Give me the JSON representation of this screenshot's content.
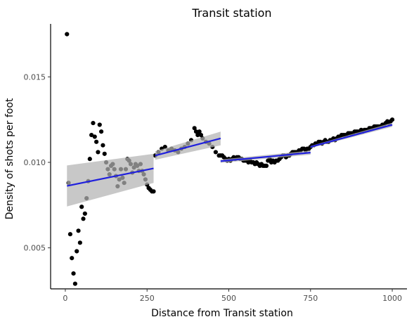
{
  "chart_data": {
    "type": "scatter",
    "title": "Transit station",
    "xlabel": "Distance from Transit station",
    "ylabel": "Density of shots per foot",
    "xlim": [
      -45,
      1045
    ],
    "ylim": [
      0.0026,
      0.0181
    ],
    "xticks": [
      0,
      250,
      500,
      750,
      1000
    ],
    "xtick_labels": [
      "0",
      "250",
      "500",
      "750",
      "1000"
    ],
    "yticks": [
      0.005,
      0.01,
      0.015
    ],
    "ytick_labels": [
      "0.005",
      "0.010",
      "0.015"
    ],
    "grid": false,
    "legend": "none",
    "colors": {
      "points": "#000000",
      "fit_line": "#1f1fdd",
      "confidence_band": "#b3b3b3"
    },
    "points": [
      [
        5,
        0.0175
      ],
      [
        10,
        0.0088
      ],
      [
        15,
        0.0058
      ],
      [
        20,
        0.0044
      ],
      [
        25,
        0.0035
      ],
      [
        30,
        0.0029
      ],
      [
        35,
        0.0048
      ],
      [
        40,
        0.006
      ],
      [
        45,
        0.0053
      ],
      [
        50,
        0.0074
      ],
      [
        55,
        0.0067
      ],
      [
        60,
        0.007
      ],
      [
        65,
        0.0079
      ],
      [
        70,
        0.0089
      ],
      [
        75,
        0.0102
      ],
      [
        80,
        0.0116
      ],
      [
        85,
        0.0123
      ],
      [
        90,
        0.0115
      ],
      [
        95,
        0.0112
      ],
      [
        100,
        0.0106
      ],
      [
        105,
        0.0122
      ],
      [
        110,
        0.0118
      ],
      [
        115,
        0.011
      ],
      [
        120,
        0.0105
      ],
      [
        125,
        0.01
      ],
      [
        130,
        0.0096
      ],
      [
        135,
        0.0093
      ],
      [
        140,
        0.0098
      ],
      [
        145,
        0.0099
      ],
      [
        150,
        0.0096
      ],
      [
        155,
        0.0092
      ],
      [
        160,
        0.0086
      ],
      [
        165,
        0.009
      ],
      [
        170,
        0.0096
      ],
      [
        175,
        0.0091
      ],
      [
        180,
        0.0088
      ],
      [
        185,
        0.0096
      ],
      [
        190,
        0.0102
      ],
      [
        195,
        0.0101
      ],
      [
        200,
        0.0099
      ],
      [
        205,
        0.0094
      ],
      [
        210,
        0.0097
      ],
      [
        215,
        0.0099
      ],
      [
        220,
        0.0098
      ],
      [
        225,
        0.0095
      ],
      [
        230,
        0.0099
      ],
      [
        235,
        0.0095
      ],
      [
        240,
        0.0093
      ],
      [
        245,
        0.009
      ],
      [
        250,
        0.0087
      ],
      [
        255,
        0.0085
      ],
      [
        260,
        0.0084
      ],
      [
        265,
        0.0083
      ],
      [
        270,
        0.0083
      ],
      [
        275,
        0.0104
      ],
      [
        285,
        0.0106
      ],
      [
        295,
        0.0108
      ],
      [
        305,
        0.0109
      ],
      [
        315,
        0.0107
      ],
      [
        325,
        0.0108
      ],
      [
        335,
        0.0107
      ],
      [
        345,
        0.0106
      ],
      [
        355,
        0.0108
      ],
      [
        365,
        0.0109
      ],
      [
        375,
        0.0111
      ],
      [
        385,
        0.0113
      ],
      [
        395,
        0.012
      ],
      [
        400,
        0.0118
      ],
      [
        405,
        0.0116
      ],
      [
        410,
        0.0118
      ],
      [
        415,
        0.0116
      ],
      [
        420,
        0.0114
      ],
      [
        430,
        0.0112
      ],
      [
        440,
        0.0111
      ],
      [
        450,
        0.0109
      ],
      [
        460,
        0.0106
      ],
      [
        470,
        0.0104
      ],
      [
        475,
        0.0104
      ],
      [
        480,
        0.0104
      ],
      [
        485,
        0.0103
      ],
      [
        490,
        0.0102
      ],
      [
        495,
        0.0101
      ],
      [
        500,
        0.0102
      ],
      [
        505,
        0.0101
      ],
      [
        510,
        0.0102
      ],
      [
        515,
        0.0103
      ],
      [
        520,
        0.0102
      ],
      [
        525,
        0.0103
      ],
      [
        530,
        0.0103
      ],
      [
        535,
        0.0102
      ],
      [
        540,
        0.0102
      ],
      [
        545,
        0.0101
      ],
      [
        550,
        0.0101
      ],
      [
        555,
        0.0101
      ],
      [
        560,
        0.01
      ],
      [
        565,
        0.0101
      ],
      [
        570,
        0.01
      ],
      [
        575,
        0.01
      ],
      [
        580,
        0.0099
      ],
      [
        585,
        0.01
      ],
      [
        590,
        0.0099
      ],
      [
        595,
        0.0098
      ],
      [
        600,
        0.0099
      ],
      [
        605,
        0.0098
      ],
      [
        610,
        0.0098
      ],
      [
        615,
        0.0098
      ],
      [
        620,
        0.0101
      ],
      [
        625,
        0.0102
      ],
      [
        630,
        0.01
      ],
      [
        635,
        0.0101
      ],
      [
        640,
        0.01
      ],
      [
        645,
        0.0101
      ],
      [
        650,
        0.0101
      ],
      [
        655,
        0.0102
      ],
      [
        660,
        0.0103
      ],
      [
        665,
        0.0104
      ],
      [
        670,
        0.0104
      ],
      [
        675,
        0.0103
      ],
      [
        680,
        0.0104
      ],
      [
        685,
        0.0104
      ],
      [
        690,
        0.0105
      ],
      [
        695,
        0.0106
      ],
      [
        700,
        0.0106
      ],
      [
        705,
        0.0106
      ],
      [
        710,
        0.0106
      ],
      [
        715,
        0.0107
      ],
      [
        720,
        0.0107
      ],
      [
        725,
        0.0108
      ],
      [
        730,
        0.0108
      ],
      [
        735,
        0.0107
      ],
      [
        740,
        0.0108
      ],
      [
        745,
        0.0108
      ],
      [
        750,
        0.0109
      ],
      [
        755,
        0.011
      ],
      [
        760,
        0.011
      ],
      [
        765,
        0.0111
      ],
      [
        770,
        0.0111
      ],
      [
        775,
        0.0112
      ],
      [
        780,
        0.0112
      ],
      [
        785,
        0.0111
      ],
      [
        790,
        0.0112
      ],
      [
        795,
        0.0113
      ],
      [
        800,
        0.0112
      ],
      [
        805,
        0.0112
      ],
      [
        810,
        0.0113
      ],
      [
        815,
        0.0113
      ],
      [
        820,
        0.0114
      ],
      [
        825,
        0.0113
      ],
      [
        830,
        0.0114
      ],
      [
        835,
        0.0115
      ],
      [
        840,
        0.0115
      ],
      [
        845,
        0.0116
      ],
      [
        850,
        0.0116
      ],
      [
        855,
        0.0116
      ],
      [
        860,
        0.0116
      ],
      [
        865,
        0.0117
      ],
      [
        870,
        0.0117
      ],
      [
        875,
        0.0117
      ],
      [
        880,
        0.0117
      ],
      [
        885,
        0.0118
      ],
      [
        890,
        0.0118
      ],
      [
        895,
        0.0118
      ],
      [
        900,
        0.0118
      ],
      [
        905,
        0.0119
      ],
      [
        910,
        0.0118
      ],
      [
        915,
        0.0119
      ],
      [
        920,
        0.0119
      ],
      [
        925,
        0.0119
      ],
      [
        930,
        0.012
      ],
      [
        935,
        0.012
      ],
      [
        940,
        0.012
      ],
      [
        945,
        0.0121
      ],
      [
        950,
        0.0121
      ],
      [
        955,
        0.0121
      ],
      [
        960,
        0.0121
      ],
      [
        965,
        0.0121
      ],
      [
        970,
        0.0122
      ],
      [
        975,
        0.0122
      ],
      [
        980,
        0.0123
      ],
      [
        985,
        0.0124
      ],
      [
        990,
        0.0123
      ],
      [
        995,
        0.0124
      ],
      [
        1000,
        0.0125
      ]
    ],
    "fit_segments": [
      {
        "x": [
          5,
          270
        ],
        "y": [
          0.00862,
          0.00965
        ],
        "band_lower": [
          0.00742,
          0.0088
        ],
        "band_upper": [
          0.00982,
          0.0105
        ]
      },
      {
        "x": [
          275,
          475
        ],
        "y": [
          0.0104,
          0.0114
        ],
        "band_lower": [
          0.01015,
          0.011
        ],
        "band_upper": [
          0.01065,
          0.0118
        ]
      },
      {
        "x": [
          475,
          750
        ],
        "y": [
          0.01007,
          0.01057
        ],
        "band_lower": [
          0.00997,
          0.01045
        ],
        "band_upper": [
          0.01017,
          0.01069
        ]
      },
      {
        "x": [
          750,
          1000
        ],
        "y": [
          0.0109,
          0.0122
        ],
        "band_lower": [
          0.01084,
          0.01208
        ],
        "band_upper": [
          0.01096,
          0.01232
        ]
      }
    ]
  }
}
